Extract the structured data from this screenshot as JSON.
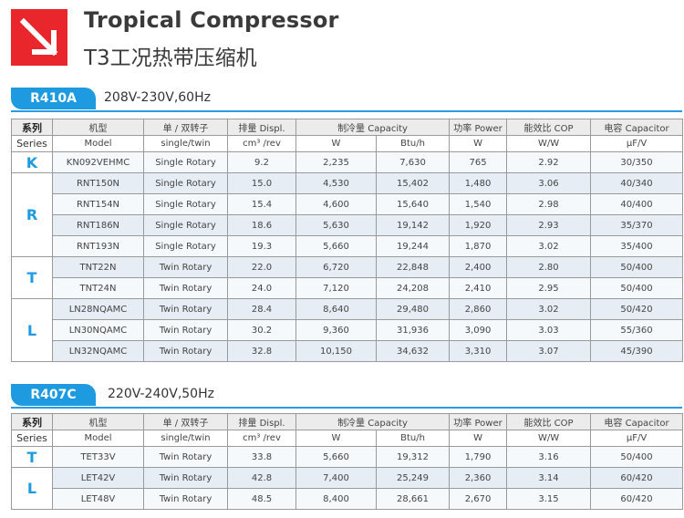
{
  "header": {
    "title": "Tropical Compressor",
    "subtitle": "T3工况热带压缩机",
    "logo_icon": "arrow-down-right-icon"
  },
  "colors": {
    "brand_red": "#e8262b",
    "accent_blue": "#1e9be0"
  },
  "columns_top": [
    "系列",
    "机型",
    "单 / 双转子",
    "排量  Displ.",
    "制冷量   Capacity",
    "功率  Power",
    "能效比  COP",
    "电容  Capacitor"
  ],
  "columns_bottom": [
    "Series",
    "Model",
    "single/twin",
    "cm³ /rev",
    "W",
    "Btu/h",
    "W",
    "W/W",
    "μF/V"
  ],
  "sections": [
    {
      "refrigerant": "R410A",
      "voltage": "208V-230V,60Hz",
      "groups": [
        {
          "series": "K",
          "rows": [
            {
              "model": "KN092VEHMC",
              "type": "Single Rotary",
              "displ": "9.2",
              "cap_w": "2,235",
              "cap_btu": "7,630",
              "power": "765",
              "cop": "2.92",
              "capacitor": "30/350"
            }
          ]
        },
        {
          "series": "R",
          "rows": [
            {
              "model": "RNT150N",
              "type": "Single Rotary",
              "displ": "15.0",
              "cap_w": "4,530",
              "cap_btu": "15,402",
              "power": "1,480",
              "cop": "3.06",
              "capacitor": "40/340"
            },
            {
              "model": "RNT154N",
              "type": "Single Rotary",
              "displ": "15.4",
              "cap_w": "4,600",
              "cap_btu": "15,640",
              "power": "1,540",
              "cop": "2.98",
              "capacitor": "40/400"
            },
            {
              "model": "RNT186N",
              "type": "Single Rotary",
              "displ": "18.6",
              "cap_w": "5,630",
              "cap_btu": "19,142",
              "power": "1,920",
              "cop": "2.93",
              "capacitor": "35/370"
            },
            {
              "model": "RNT193N",
              "type": "Single Rotary",
              "displ": "19.3",
              "cap_w": "5,660",
              "cap_btu": "19,244",
              "power": "1,870",
              "cop": "3.02",
              "capacitor": "35/400"
            }
          ]
        },
        {
          "series": "T",
          "rows": [
            {
              "model": "TNT22N",
              "type": "Twin Rotary",
              "displ": "22.0",
              "cap_w": "6,720",
              "cap_btu": "22,848",
              "power": "2,400",
              "cop": "2.80",
              "capacitor": "50/400"
            },
            {
              "model": "TNT24N",
              "type": "Twin Rotary",
              "displ": "24.0",
              "cap_w": "7,120",
              "cap_btu": "24,208",
              "power": "2,410",
              "cop": "2.95",
              "capacitor": "50/400"
            }
          ]
        },
        {
          "series": "L",
          "rows": [
            {
              "model": "LN28NQAMC",
              "type": "Twin Rotary",
              "displ": "28.4",
              "cap_w": "8,640",
              "cap_btu": "29,480",
              "power": "2,860",
              "cop": "3.02",
              "capacitor": "50/420"
            },
            {
              "model": "LN30NQAMC",
              "type": "Twin Rotary",
              "displ": "30.2",
              "cap_w": "9,360",
              "cap_btu": "31,936",
              "power": "3,090",
              "cop": "3.03",
              "capacitor": "55/360"
            },
            {
              "model": "LN32NQAMC",
              "type": "Twin Rotary",
              "displ": "32.8",
              "cap_w": "10,150",
              "cap_btu": "34,632",
              "power": "3,310",
              "cop": "3.07",
              "capacitor": "45/390"
            }
          ]
        }
      ]
    },
    {
      "refrigerant": "R407C",
      "voltage": "220V-240V,50Hz",
      "groups": [
        {
          "series": "T",
          "rows": [
            {
              "model": "TET33V",
              "type": "Twin Rotary",
              "displ": "33.8",
              "cap_w": "5,660",
              "cap_btu": "19,312",
              "power": "1,790",
              "cop": "3.16",
              "capacitor": "50/400"
            }
          ]
        },
        {
          "series": "L",
          "rows": [
            {
              "model": "LET42V",
              "type": "Twin Rotary",
              "displ": "42.8",
              "cap_w": "7,400",
              "cap_btu": "25,249",
              "power": "2,360",
              "cop": "3.14",
              "capacitor": "60/420"
            },
            {
              "model": "LET48V",
              "type": "Twin Rotary",
              "displ": "48.5",
              "cap_w": "8,400",
              "cap_btu": "28,661",
              "power": "2,670",
              "cop": "3.15",
              "capacitor": "60/420"
            }
          ]
        }
      ]
    }
  ]
}
